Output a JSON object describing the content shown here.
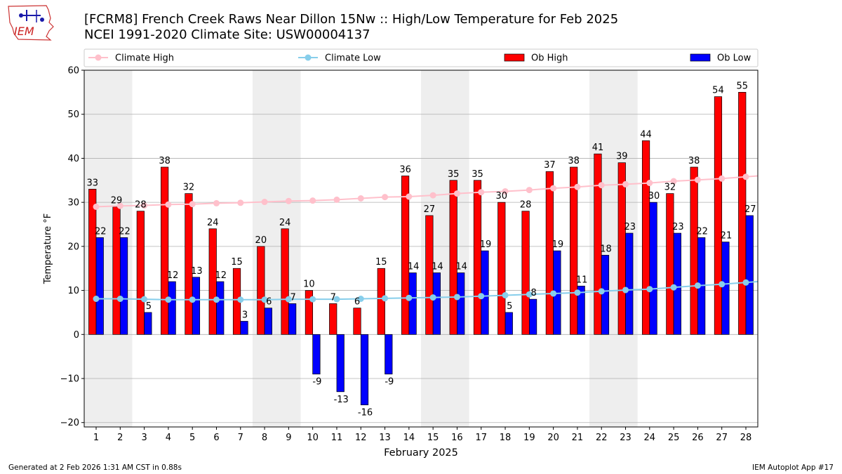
{
  "header": {
    "title_line1": "[FCRM8] French Creek Raws Near Dillon 15Nw :: High/Low Temperature for Feb 2025",
    "title_line2": "NCEI 1991-2020 Climate Site: USW00004137",
    "logo_text": "IEM"
  },
  "footer": {
    "generated": "Generated at 2 Feb 2026 1:31 AM CST in 0.88s",
    "app": "IEM Autoplot App #17"
  },
  "colors": {
    "ob_high": "#ff0000",
    "ob_low": "#0000ff",
    "climate_high": "#ffc0cb",
    "climate_low": "#87ceeb",
    "weekend_band": "#eeeeee",
    "grid": "#b0b0b0"
  },
  "chart_data": {
    "type": "bar",
    "xlabel": "February 2025",
    "ylabel": "Temperature °F",
    "ylim": [
      -21,
      60
    ],
    "yticks": [
      -20,
      -10,
      0,
      10,
      20,
      30,
      40,
      50,
      60
    ],
    "grid": true,
    "legend_position": "top",
    "categories": [
      "1",
      "2",
      "3",
      "4",
      "5",
      "6",
      "7",
      "8",
      "9",
      "10",
      "11",
      "12",
      "13",
      "14",
      "15",
      "16",
      "17",
      "18",
      "19",
      "20",
      "21",
      "22",
      "23",
      "24",
      "25",
      "26",
      "27",
      "28"
    ],
    "shaded_days": [
      1,
      2,
      8,
      9,
      15,
      16,
      22,
      23
    ],
    "series": [
      {
        "name": "Ob High",
        "kind": "bar",
        "values": [
          33,
          29,
          28,
          38,
          32,
          24,
          15,
          20,
          24,
          10,
          7,
          6,
          15,
          36,
          27,
          35,
          35,
          30,
          28,
          37,
          38,
          41,
          39,
          44,
          32,
          38,
          54,
          55
        ]
      },
      {
        "name": "Ob Low",
        "kind": "bar",
        "values": [
          22,
          22,
          5,
          12,
          13,
          12,
          3,
          6,
          7,
          -9,
          -13,
          -16,
          -9,
          14,
          14,
          14,
          19,
          5,
          8,
          19,
          11,
          18,
          23,
          30,
          23,
          22,
          21,
          27
        ]
      },
      {
        "name": "Climate High",
        "kind": "line",
        "values": [
          29.0,
          29.2,
          29.3,
          29.5,
          29.6,
          29.8,
          29.9,
          30.1,
          30.3,
          30.4,
          30.6,
          30.9,
          31.2,
          31.3,
          31.6,
          32.0,
          32.3,
          32.5,
          32.8,
          33.2,
          33.5,
          33.9,
          34.1,
          34.4,
          34.8,
          35.1,
          35.4,
          35.8
        ]
      },
      {
        "name": "Climate Low",
        "kind": "line",
        "values": [
          8.1,
          8.1,
          8.0,
          7.9,
          7.9,
          7.9,
          7.9,
          7.9,
          8.0,
          8.0,
          8.0,
          8.1,
          8.2,
          8.3,
          8.4,
          8.5,
          8.7,
          8.9,
          9.1,
          9.3,
          9.5,
          9.8,
          10.1,
          10.3,
          10.7,
          11.1,
          11.4,
          11.8
        ]
      }
    ]
  }
}
